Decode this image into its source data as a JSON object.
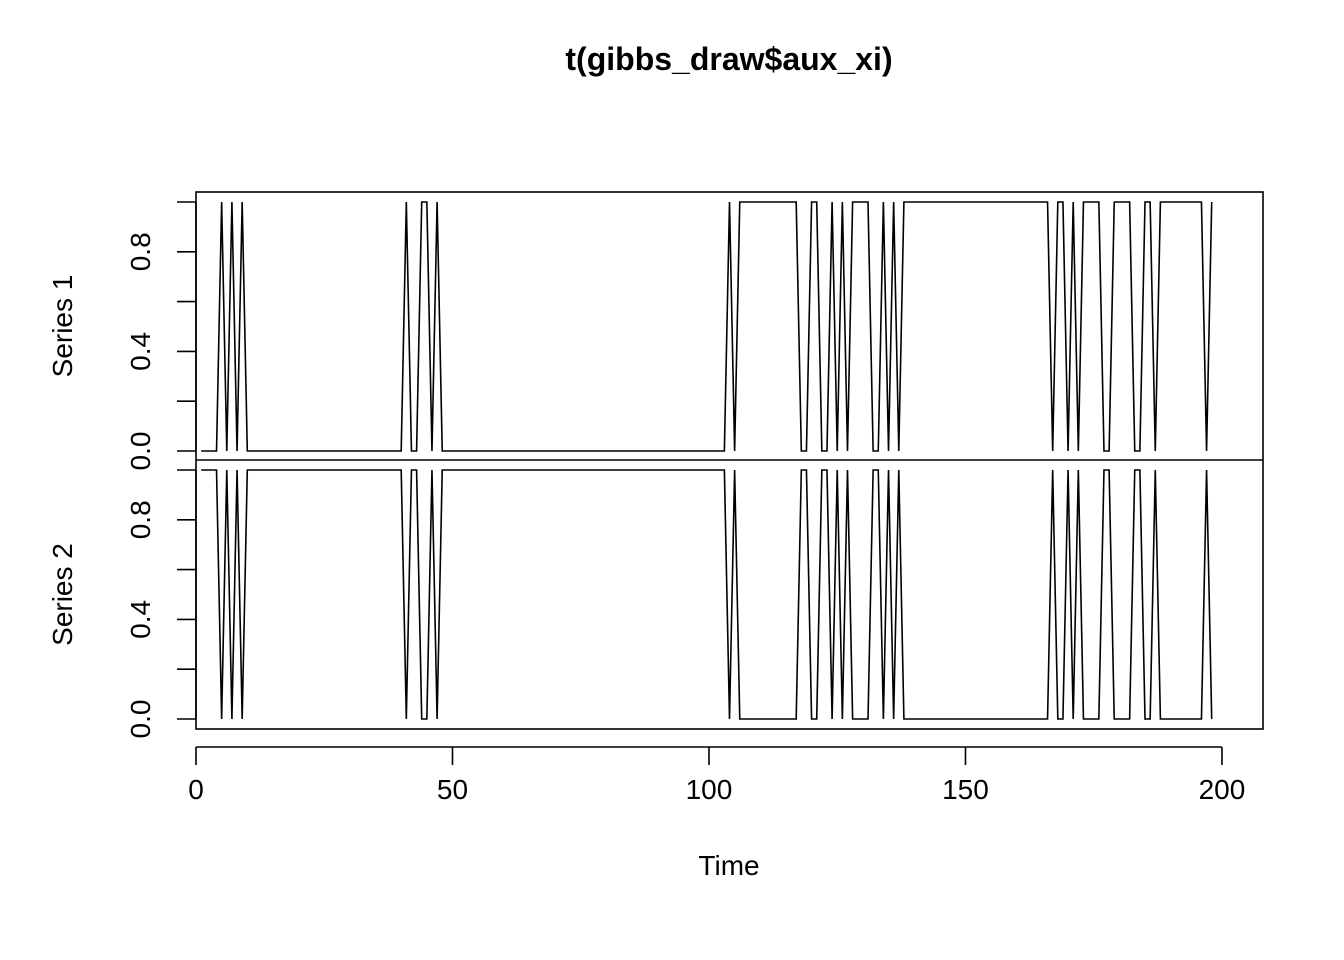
{
  "chart_data": {
    "type": "line",
    "title": "t(gibbs_draw$aux_xi)",
    "xlabel": "Time",
    "xlim": [
      0,
      208
    ],
    "xticks": [
      0,
      50,
      100,
      150,
      200
    ],
    "yticks": [
      0.0,
      0.2,
      0.4,
      0.6,
      0.8,
      1.0
    ],
    "ytick_labels": [
      "0.0",
      "0.4",
      "0.8"
    ],
    "ylim": [
      0,
      1
    ],
    "grid": false,
    "series": [
      {
        "name": "Series 1",
        "x_start": 1,
        "values": [
          0,
          0,
          0,
          0,
          1,
          0,
          1,
          0,
          1,
          0,
          0,
          0,
          0,
          0,
          0,
          0,
          0,
          0,
          0,
          0,
          0,
          0,
          0,
          0,
          0,
          0,
          0,
          0,
          0,
          0,
          0,
          0,
          0,
          0,
          0,
          0,
          0,
          0,
          0,
          0,
          1,
          0,
          0,
          1,
          1,
          0,
          1,
          0,
          0,
          0,
          0,
          0,
          0,
          0,
          0,
          0,
          0,
          0,
          0,
          0,
          0,
          0,
          0,
          0,
          0,
          0,
          0,
          0,
          0,
          0,
          0,
          0,
          0,
          0,
          0,
          0,
          0,
          0,
          0,
          0,
          0,
          0,
          0,
          0,
          0,
          0,
          0,
          0,
          0,
          0,
          0,
          0,
          0,
          0,
          0,
          0,
          0,
          0,
          0,
          0,
          0,
          0,
          0,
          1,
          0,
          1,
          1,
          1,
          1,
          1,
          1,
          1,
          1,
          1,
          1,
          1,
          1,
          0,
          0,
          1,
          1,
          0,
          0,
          1,
          0,
          1,
          0,
          1,
          1,
          1,
          1,
          0,
          0,
          1,
          0,
          1,
          0,
          1,
          1,
          1,
          1,
          1,
          1,
          1,
          1,
          1,
          1,
          1,
          1,
          1,
          1,
          1,
          1,
          1,
          1,
          1,
          1,
          1,
          1,
          1,
          1,
          1,
          1,
          1,
          1,
          1,
          0,
          1,
          1,
          0,
          1,
          0,
          1,
          1,
          1,
          1,
          0,
          0,
          1,
          1,
          1,
          1,
          0,
          0,
          1,
          1,
          0,
          1,
          1,
          1,
          1,
          1,
          1,
          1,
          1,
          1,
          0,
          1
        ]
      },
      {
        "name": "Series 2",
        "x_start": 1,
        "values": [
          1,
          1,
          1,
          1,
          0,
          1,
          0,
          1,
          0,
          1,
          1,
          1,
          1,
          1,
          1,
          1,
          1,
          1,
          1,
          1,
          1,
          1,
          1,
          1,
          1,
          1,
          1,
          1,
          1,
          1,
          1,
          1,
          1,
          1,
          1,
          1,
          1,
          1,
          1,
          1,
          0,
          1,
          1,
          0,
          0,
          1,
          0,
          1,
          1,
          1,
          1,
          1,
          1,
          1,
          1,
          1,
          1,
          1,
          1,
          1,
          1,
          1,
          1,
          1,
          1,
          1,
          1,
          1,
          1,
          1,
          1,
          1,
          1,
          1,
          1,
          1,
          1,
          1,
          1,
          1,
          1,
          1,
          1,
          1,
          1,
          1,
          1,
          1,
          1,
          1,
          1,
          1,
          1,
          1,
          1,
          1,
          1,
          1,
          1,
          1,
          1,
          1,
          1,
          0,
          1,
          0,
          0,
          0,
          0,
          0,
          0,
          0,
          0,
          0,
          0,
          0,
          0,
          1,
          1,
          0,
          0,
          1,
          1,
          0,
          1,
          0,
          1,
          0,
          0,
          0,
          0,
          1,
          1,
          0,
          1,
          0,
          1,
          0,
          0,
          0,
          0,
          0,
          0,
          0,
          0,
          0,
          0,
          0,
          0,
          0,
          0,
          0,
          0,
          0,
          0,
          0,
          0,
          0,
          0,
          0,
          0,
          0,
          0,
          0,
          0,
          0,
          1,
          0,
          0,
          1,
          0,
          1,
          0,
          0,
          0,
          0,
          1,
          1,
          0,
          0,
          0,
          0,
          1,
          1,
          0,
          0,
          1,
          0,
          0,
          0,
          0,
          0,
          0,
          0,
          0,
          0,
          1,
          0
        ]
      }
    ]
  }
}
